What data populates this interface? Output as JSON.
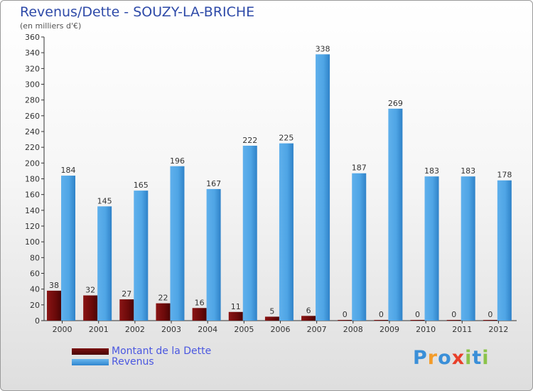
{
  "title": "Revenus/Dette - SOUZY-LA-BRICHE",
  "subtitle": "(en milliers d'€)",
  "legend": {
    "debt_label": "Montant de la Dette",
    "revenue_label": "Revenus"
  },
  "logo": {
    "letters": [
      "P",
      "r",
      "o",
      "x",
      "i",
      "t",
      "i"
    ],
    "colors": [
      "#3a8fd8",
      "#f39c2a",
      "#3a8fd8",
      "#e8402a",
      "#8bc34a",
      "#3a8fd8",
      "#8bc34a"
    ]
  },
  "colors": {
    "debt": "#6b0a0a",
    "revenue": "#4ea6e6",
    "title": "#2e4aa8"
  },
  "chart_data": {
    "type": "bar",
    "categories": [
      "2000",
      "2001",
      "2002",
      "2003",
      "2004",
      "2005",
      "2006",
      "2007",
      "2008",
      "2009",
      "2010",
      "2011",
      "2012"
    ],
    "series": [
      {
        "name": "Montant de la Dette",
        "values": [
          38,
          32,
          27,
          22,
          16,
          11,
          5,
          6,
          0,
          0,
          0,
          0,
          0
        ]
      },
      {
        "name": "Revenus",
        "values": [
          184,
          145,
          165,
          196,
          167,
          222,
          225,
          338,
          187,
          269,
          183,
          183,
          178
        ]
      }
    ],
    "ylim": [
      0,
      360
    ],
    "ytick_step": 20,
    "grid": false,
    "xlabel": "",
    "ylabel": ""
  }
}
